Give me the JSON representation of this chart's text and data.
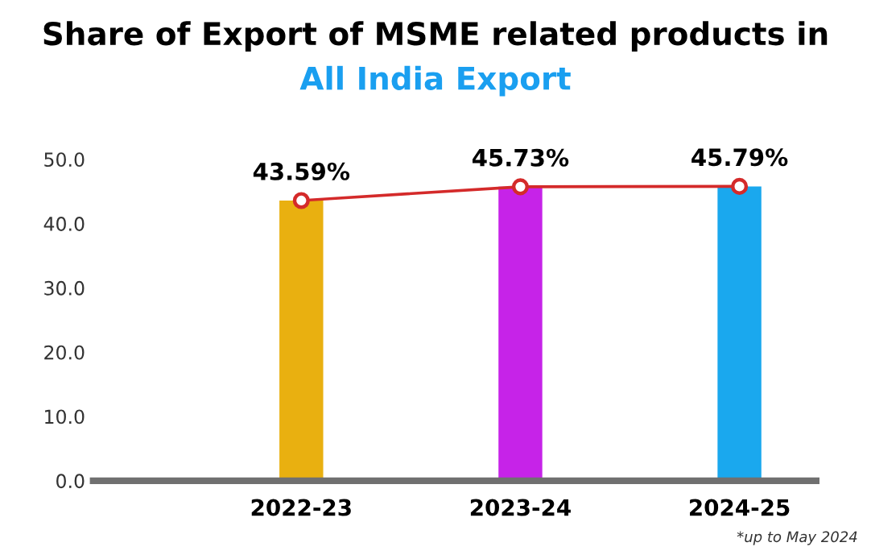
{
  "chart_data": {
    "type": "bar",
    "title": "Share of Export of MSME related products in",
    "subtitle": "All India Export",
    "categories": [
      "2022-23",
      "2023-24",
      "2024-25"
    ],
    "series": [
      {
        "colors": [
          "#e9b010",
          "#c623e8",
          "#1aa8ee"
        ],
        "values": [
          43.59,
          45.73,
          45.79
        ]
      },
      {
        "type": "line",
        "color": "#d42a2a",
        "values": [
          43.59,
          45.73,
          45.79
        ],
        "value_labels": [
          "43.59%",
          "45.73%",
          "45.79%"
        ]
      }
    ],
    "ylim": [
      0,
      50
    ],
    "yticks": [
      {
        "value": 0,
        "label": "0.0"
      },
      {
        "value": 10,
        "label": "10.0"
      },
      {
        "value": 20,
        "label": "20.0"
      },
      {
        "value": 30,
        "label": "30.0"
      },
      {
        "value": 40,
        "label": "40.0"
      },
      {
        "value": 50,
        "label": "50.0"
      }
    ],
    "marker": "circle",
    "grid": false,
    "annotations": [
      "*up to May 2024"
    ]
  }
}
